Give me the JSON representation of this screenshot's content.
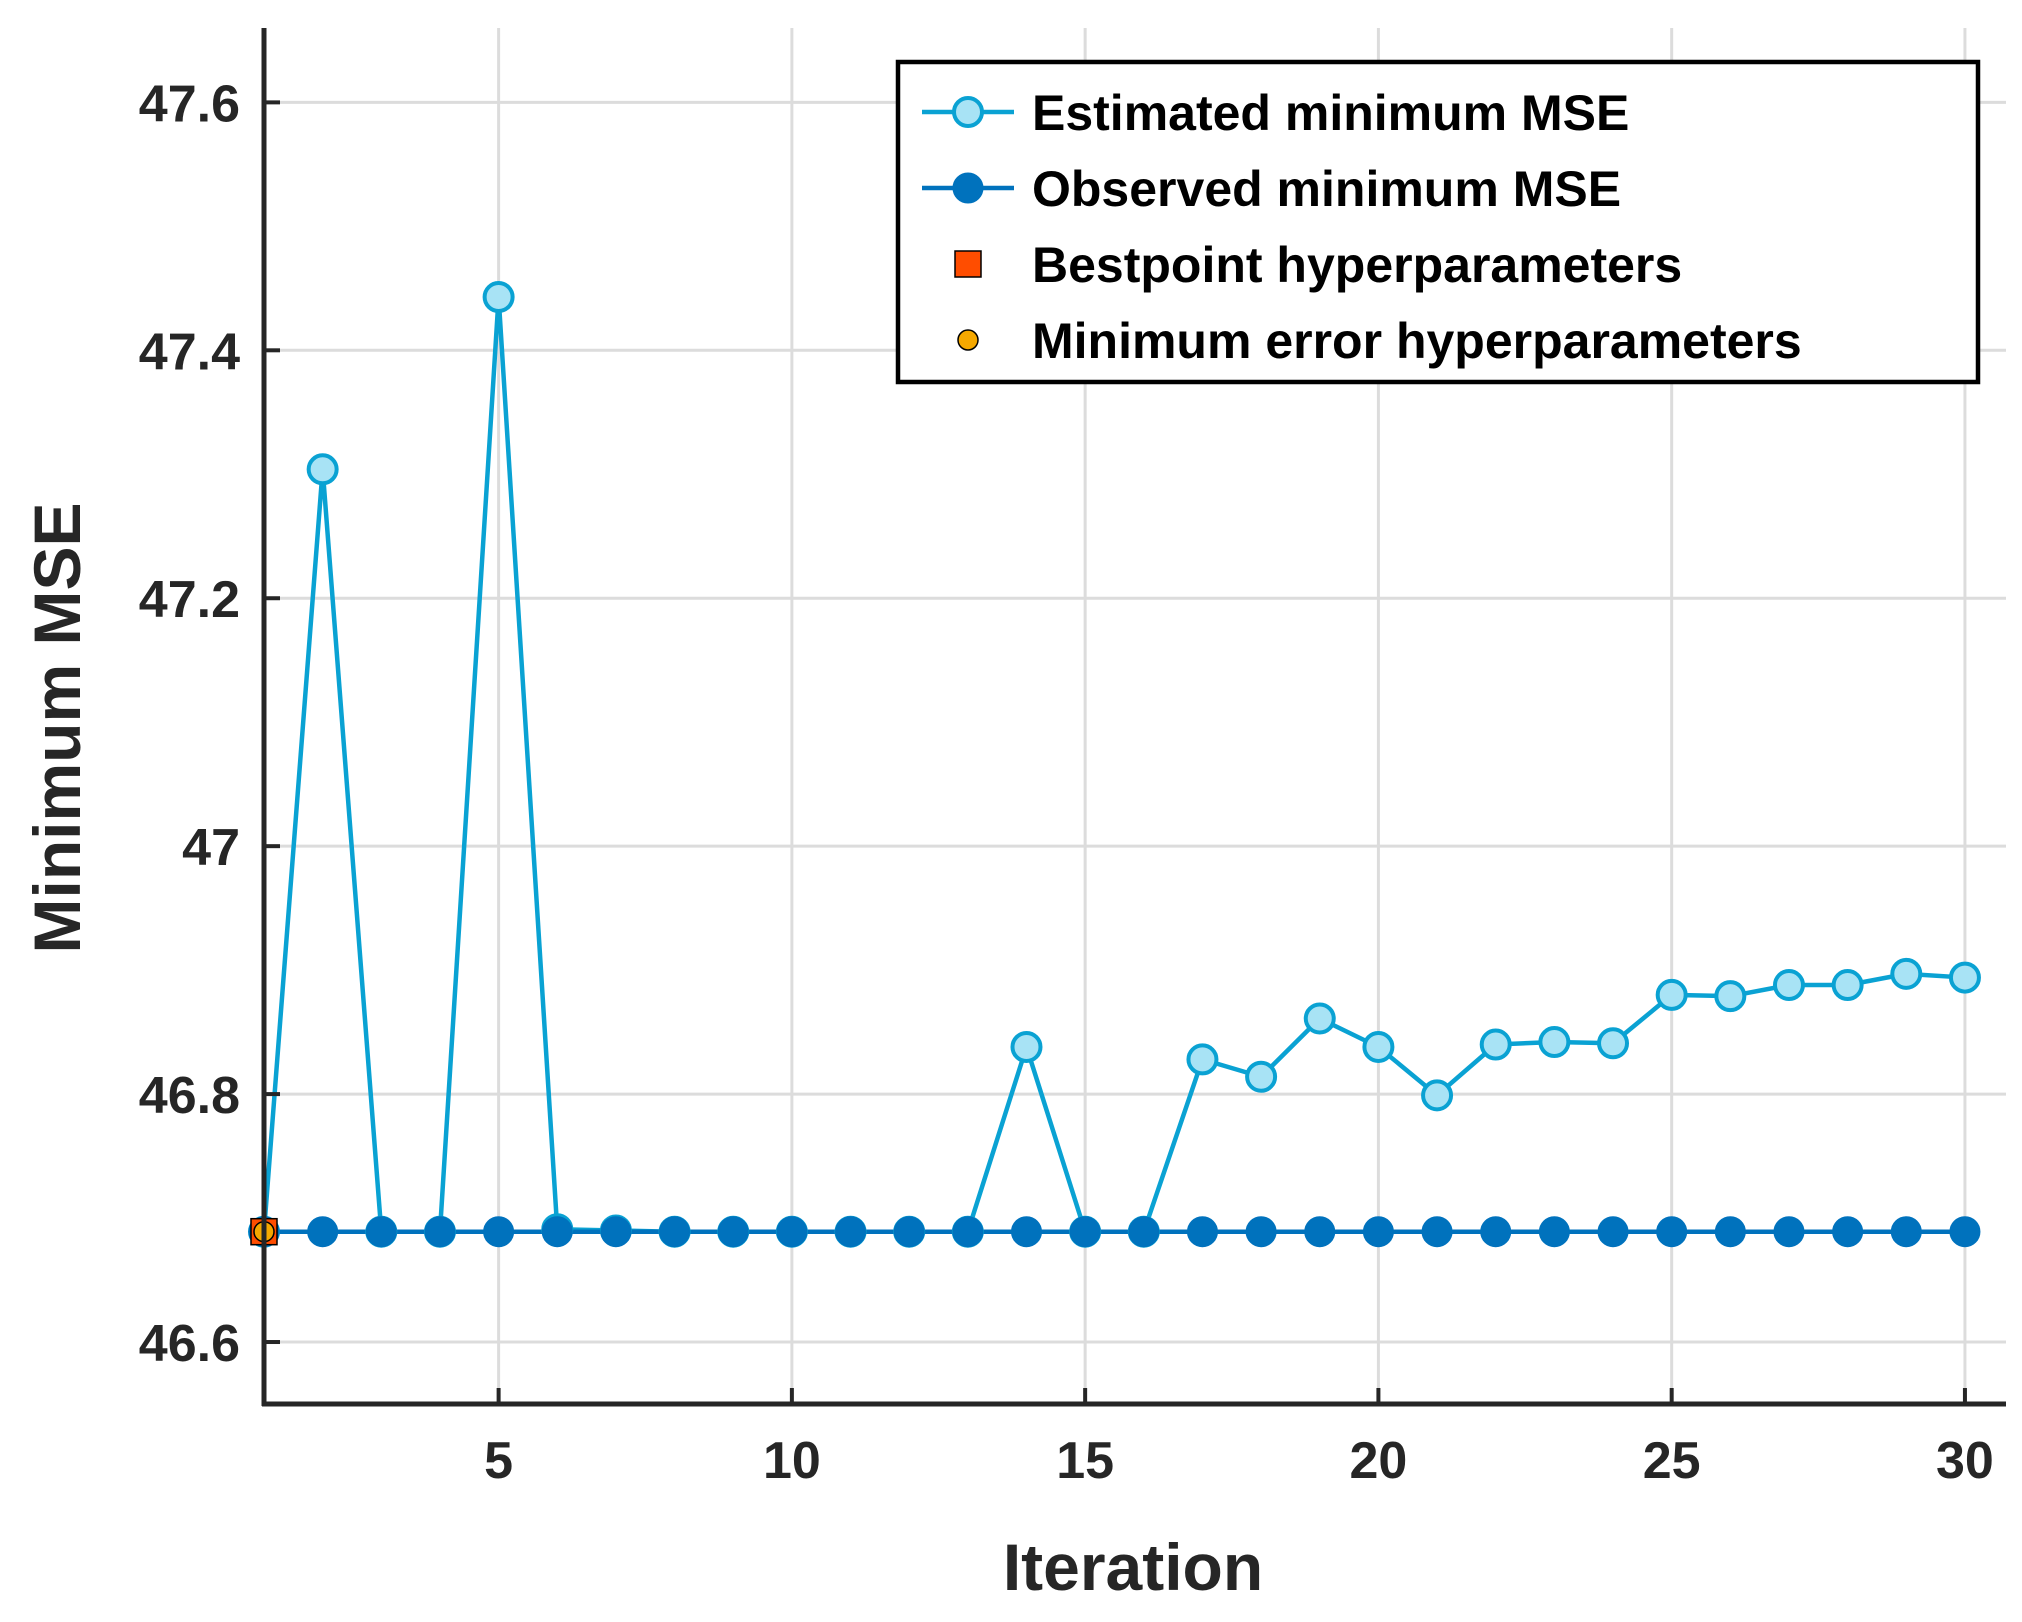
{
  "chart_data": {
    "type": "line",
    "title": "",
    "xlabel": "Iteration",
    "ylabel": "Minimum MSE",
    "xlim": [
      1,
      30.7
    ],
    "ylim": [
      46.55,
      47.66
    ],
    "grid": true,
    "legend_position": "top-right",
    "x_ticks": [
      5,
      10,
      15,
      20,
      25,
      30
    ],
    "x_tick_labels": [
      "5",
      "10",
      "15",
      "20",
      "25",
      "30"
    ],
    "y_ticks": [
      46.6,
      46.8,
      47.0,
      47.2,
      47.4,
      47.6
    ],
    "y_tick_labels": [
      "46.6",
      "46.8",
      "47",
      "47.2",
      "47.4",
      "47.6"
    ],
    "series": [
      {
        "name": "Estimated minimum MSE",
        "color": "#0aa2d3",
        "marker_fill": "#a8e3f5",
        "x": [
          1,
          2,
          3,
          4,
          5,
          6,
          7,
          8,
          9,
          10,
          11,
          12,
          13,
          14,
          15,
          16,
          17,
          18,
          19,
          20,
          21,
          22,
          23,
          24,
          25,
          26,
          27,
          28,
          29,
          30
        ],
        "values": [
          46.689,
          47.304,
          46.689,
          46.689,
          47.443,
          46.691,
          46.69,
          46.689,
          46.689,
          46.689,
          46.689,
          46.689,
          46.689,
          46.838,
          46.689,
          46.689,
          46.828,
          46.814,
          46.861,
          46.838,
          46.799,
          46.84,
          46.842,
          46.841,
          46.88,
          46.879,
          46.888,
          46.888,
          46.897,
          46.894
        ]
      },
      {
        "name": "Observed minimum MSE",
        "color": "#0072bd",
        "marker_fill": "#0072bd",
        "x": [
          1,
          2,
          3,
          4,
          5,
          6,
          7,
          8,
          9,
          10,
          11,
          12,
          13,
          14,
          15,
          16,
          17,
          18,
          19,
          20,
          21,
          22,
          23,
          24,
          25,
          26,
          27,
          28,
          29,
          30
        ],
        "values": [
          46.689,
          46.689,
          46.689,
          46.689,
          46.689,
          46.689,
          46.689,
          46.689,
          46.689,
          46.689,
          46.689,
          46.689,
          46.689,
          46.689,
          46.689,
          46.689,
          46.689,
          46.689,
          46.689,
          46.689,
          46.689,
          46.689,
          46.689,
          46.689,
          46.689,
          46.689,
          46.689,
          46.689,
          46.689,
          46.689
        ]
      },
      {
        "name": "Bestpoint hyperparameters",
        "color": "#ff4d00",
        "marker": "square",
        "x": [
          1
        ],
        "values": [
          46.689
        ]
      },
      {
        "name": "Minimum error hyperparameters",
        "color": "#f5a800",
        "marker": "circle",
        "x": [
          1
        ],
        "values": [
          46.689
        ]
      }
    ]
  }
}
